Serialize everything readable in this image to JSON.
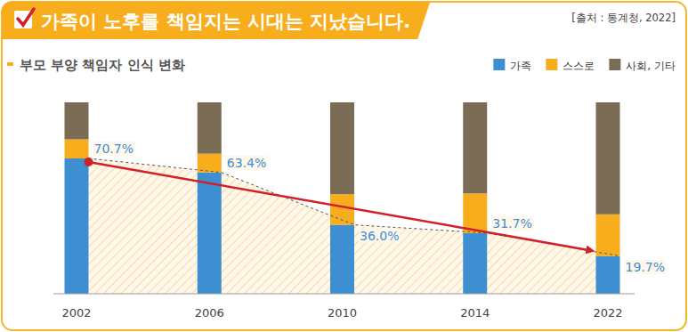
{
  "chart_data": {
    "type": "bar",
    "stacked": true,
    "title": "가족이 노후를 책임지는 시대는 지났습니다.",
    "subtitle": "부모 부양 책임자 인식 변화",
    "source": "[출처 : 통계청, 2022]",
    "categories": [
      "2002",
      "2006",
      "2010",
      "2014",
      "2022"
    ],
    "series": [
      {
        "name": "가족",
        "color": "#3d8fd1",
        "values": [
          70.7,
          63.4,
          36.0,
          31.7,
          19.7
        ],
        "data_labels": true,
        "value_labels": [
          "70.7%",
          "63.4%",
          "36.0%",
          "31.7%",
          "19.7%"
        ]
      },
      {
        "name": "스스로",
        "color": "#f8ad1c",
        "values": [
          10.0,
          9.8,
          16.0,
          20.7,
          21.8
        ]
      },
      {
        "name": "사회, 기타",
        "color": "#7b6d55",
        "values": [
          19.3,
          26.8,
          48.0,
          47.6,
          58.5
        ]
      }
    ],
    "ylim": [
      0,
      100
    ],
    "tick_labels": "x",
    "legend": "top-right"
  }
}
